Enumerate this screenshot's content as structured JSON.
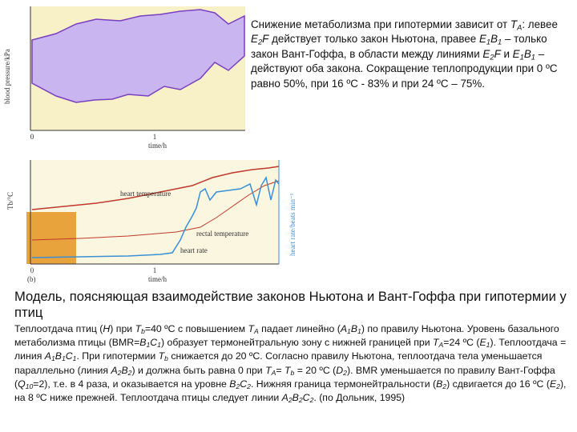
{
  "figure": {
    "top_y_label": "blood pressure/kPa",
    "top_x_label": "time/h",
    "top_x_ticks": [
      "0",
      "1"
    ],
    "bottom_panel_label": "(b)",
    "bottom_y_label": "Tb/°C",
    "bottom_y2_label": "heart rate/beats min⁻¹",
    "bottom_x_label": "time/h",
    "bottom_x_ticks": [
      "0",
      "1"
    ],
    "curve_labels": [
      "heart temperature",
      "rectal temperature",
      "heart rate"
    ]
  },
  "right_text": [
    "Снижение метаболизма при гипотермии зависит от ",
    {
      "t": "T",
      "s": "i"
    },
    {
      "t": "A",
      "s": "isub"
    },
    ": левее ",
    {
      "t": "E",
      "s": "i"
    },
    {
      "t": "2",
      "s": "isub"
    },
    {
      "t": "F",
      "s": "i"
    },
    "  действует только закон Ньютона, правее ",
    {
      "t": "E",
      "s": "i"
    },
    {
      "t": "1",
      "s": "isub"
    },
    {
      "t": "B",
      "s": "i"
    },
    {
      "t": "1",
      "s": "isub"
    },
    " – только закон Вант-Гоффа, в области между линиями ",
    {
      "t": "E",
      "s": "i"
    },
    {
      "t": "2",
      "s": "isub"
    },
    {
      "t": "F",
      "s": "i"
    },
    " и ",
    {
      "t": "E",
      "s": "i"
    },
    {
      "t": "1",
      "s": "isub"
    },
    {
      "t": "B",
      "s": "i"
    },
    {
      "t": "1",
      "s": "isub"
    },
    " – действуют оба закона. Сокращение теплопродукции при 0 ºС равно 50%, при 16 ºС - 83% и при 24 ºС – 75%."
  ],
  "heading": "Модель, поясняющая взаимодействие законов Ньютона и Вант-Гоффа при гипотермии у птиц",
  "bottom_text": [
    "Теплоотдача птиц (",
    {
      "t": "H",
      "s": "i"
    },
    ") при ",
    {
      "t": "T",
      "s": "i"
    },
    {
      "t": "b",
      "s": "isub"
    },
    "=40 ºС с повышением ",
    {
      "t": "T",
      "s": "i"
    },
    {
      "t": "A",
      "s": "isub"
    },
    " падает линейно (",
    {
      "t": "A",
      "s": "i"
    },
    {
      "t": "1",
      "s": "isub"
    },
    {
      "t": "B",
      "s": "i"
    },
    {
      "t": "1",
      "s": "isub"
    },
    ") по правилу Ньютона. Уровень базального метаболизма птицы (BMR=",
    {
      "t": "B",
      "s": "i"
    },
    {
      "t": "1",
      "s": "isub"
    },
    {
      "t": "C",
      "s": "i"
    },
    {
      "t": "1",
      "s": "isub"
    },
    ") образует термонейтральную зону с нижней границей при ",
    {
      "t": "T",
      "s": "i"
    },
    {
      "t": "A",
      "s": "isub"
    },
    "=24 ºС (",
    {
      "t": "E",
      "s": "i"
    },
    {
      "t": "1",
      "s": "isub"
    },
    "). Теплоотдача = линия ",
    {
      "t": "A",
      "s": "i"
    },
    {
      "t": "1",
      "s": "isub"
    },
    {
      "t": "B",
      "s": "i"
    },
    {
      "t": "1",
      "s": "isub"
    },
    {
      "t": "C",
      "s": "i"
    },
    {
      "t": "1",
      "s": "isub"
    },
    ". При гипотермии ",
    {
      "t": "T",
      "s": "i"
    },
    {
      "t": "b",
      "s": "isub"
    },
    " снижается до 20 ºС. Согласно правилу Ньютона, теплоотдача тела уменьшается параллельно (линия ",
    {
      "t": "A",
      "s": "i"
    },
    {
      "t": "2",
      "s": "isub"
    },
    {
      "t": "B",
      "s": "i"
    },
    {
      "t": "2",
      "s": "isub"
    },
    ") и должна быть равна 0 при ",
    {
      "t": "T",
      "s": "i"
    },
    {
      "t": "A",
      "s": "isub"
    },
    "= ",
    {
      "t": "T",
      "s": "i"
    },
    {
      "t": "b",
      "s": "isub"
    },
    " = 20 ºС (",
    {
      "t": "D",
      "s": "i"
    },
    {
      "t": "2",
      "s": "isub"
    },
    "). BMR уменьшается по правилу Вант-Гоффа (",
    {
      "t": "Q",
      "s": "i"
    },
    {
      "t": "10",
      "s": "isub"
    },
    "=2), т.е. в 4 раза, и оказывается на уровне ",
    {
      "t": "B",
      "s": "i"
    },
    {
      "t": "2",
      "s": "isub"
    },
    {
      "t": "C",
      "s": "i"
    },
    {
      "t": "2",
      "s": "isub"
    },
    ". Нижняя граница термонейтральности (",
    {
      "t": "B",
      "s": "i"
    },
    {
      "t": "2",
      "s": "isub"
    },
    ") сдвигается до 16 ºС (",
    {
      "t": "E",
      "s": "i"
    },
    {
      "t": "2",
      "s": "isub"
    },
    "), на 8 ºС ниже прежней. Теплоотдача птицы следует линии ",
    {
      "t": "A",
      "s": "i"
    },
    {
      "t": "2",
      "s": "isub"
    },
    {
      "t": "B",
      "s": "i"
    },
    {
      "t": "2",
      "s": "isub"
    },
    {
      "t": "C",
      "s": "i"
    },
    {
      "t": "2",
      "s": "isub"
    },
    ". (по Дольник, 1995)"
  ]
}
